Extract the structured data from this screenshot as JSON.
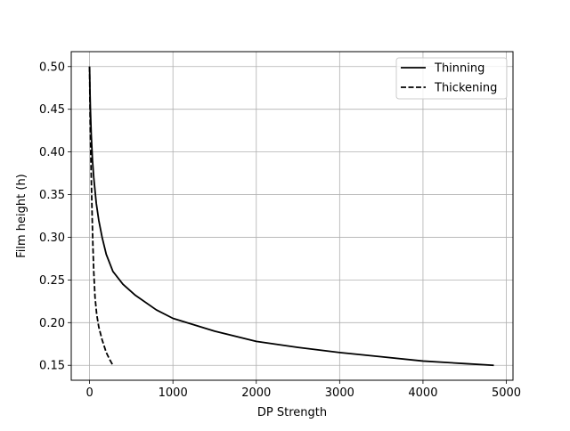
{
  "chart_data": {
    "type": "line",
    "xlabel": "DP Strength",
    "ylabel": "Film height (h)",
    "xlim": [
      -220,
      5080
    ],
    "ylim": [
      0.1325,
      0.5175
    ],
    "xticks": [
      0,
      1000,
      2000,
      3000,
      4000,
      5000
    ],
    "yticks": [
      0.15,
      0.2,
      0.25,
      0.3,
      0.35,
      0.4,
      0.45,
      0.5
    ],
    "xtick_labels": [
      "0",
      "1000",
      "2000",
      "3000",
      "4000",
      "5000"
    ],
    "ytick_labels": [
      "0.15",
      "0.20",
      "0.25",
      "0.30",
      "0.35",
      "0.40",
      "0.45",
      "0.50"
    ],
    "grid": true,
    "legend_position": "top-right",
    "series": [
      {
        "name": "Thinning",
        "style": "solid",
        "color": "#000000",
        "points": [
          [
            0,
            0.5
          ],
          [
            5,
            0.47
          ],
          [
            10,
            0.45
          ],
          [
            20,
            0.42
          ],
          [
            35,
            0.39
          ],
          [
            50,
            0.37
          ],
          [
            80,
            0.34
          ],
          [
            110,
            0.32
          ],
          [
            150,
            0.3
          ],
          [
            200,
            0.28
          ],
          [
            280,
            0.26
          ],
          [
            400,
            0.245
          ],
          [
            550,
            0.232
          ],
          [
            800,
            0.215
          ],
          [
            1000,
            0.205
          ],
          [
            1500,
            0.19
          ],
          [
            2000,
            0.178
          ],
          [
            2500,
            0.171
          ],
          [
            3000,
            0.165
          ],
          [
            3500,
            0.16
          ],
          [
            4000,
            0.155
          ],
          [
            4500,
            0.152
          ],
          [
            4850,
            0.15
          ]
        ]
      },
      {
        "name": "Thickening",
        "style": "dashed",
        "color": "#000000",
        "points": [
          [
            0,
            0.5
          ],
          [
            3,
            0.47
          ],
          [
            7,
            0.44
          ],
          [
            12,
            0.41
          ],
          [
            18,
            0.38
          ],
          [
            25,
            0.35
          ],
          [
            32,
            0.32
          ],
          [
            40,
            0.29
          ],
          [
            50,
            0.26
          ],
          [
            65,
            0.23
          ],
          [
            85,
            0.21
          ],
          [
            110,
            0.195
          ],
          [
            150,
            0.18
          ],
          [
            200,
            0.165
          ],
          [
            240,
            0.157
          ],
          [
            280,
            0.15
          ]
        ]
      }
    ]
  }
}
